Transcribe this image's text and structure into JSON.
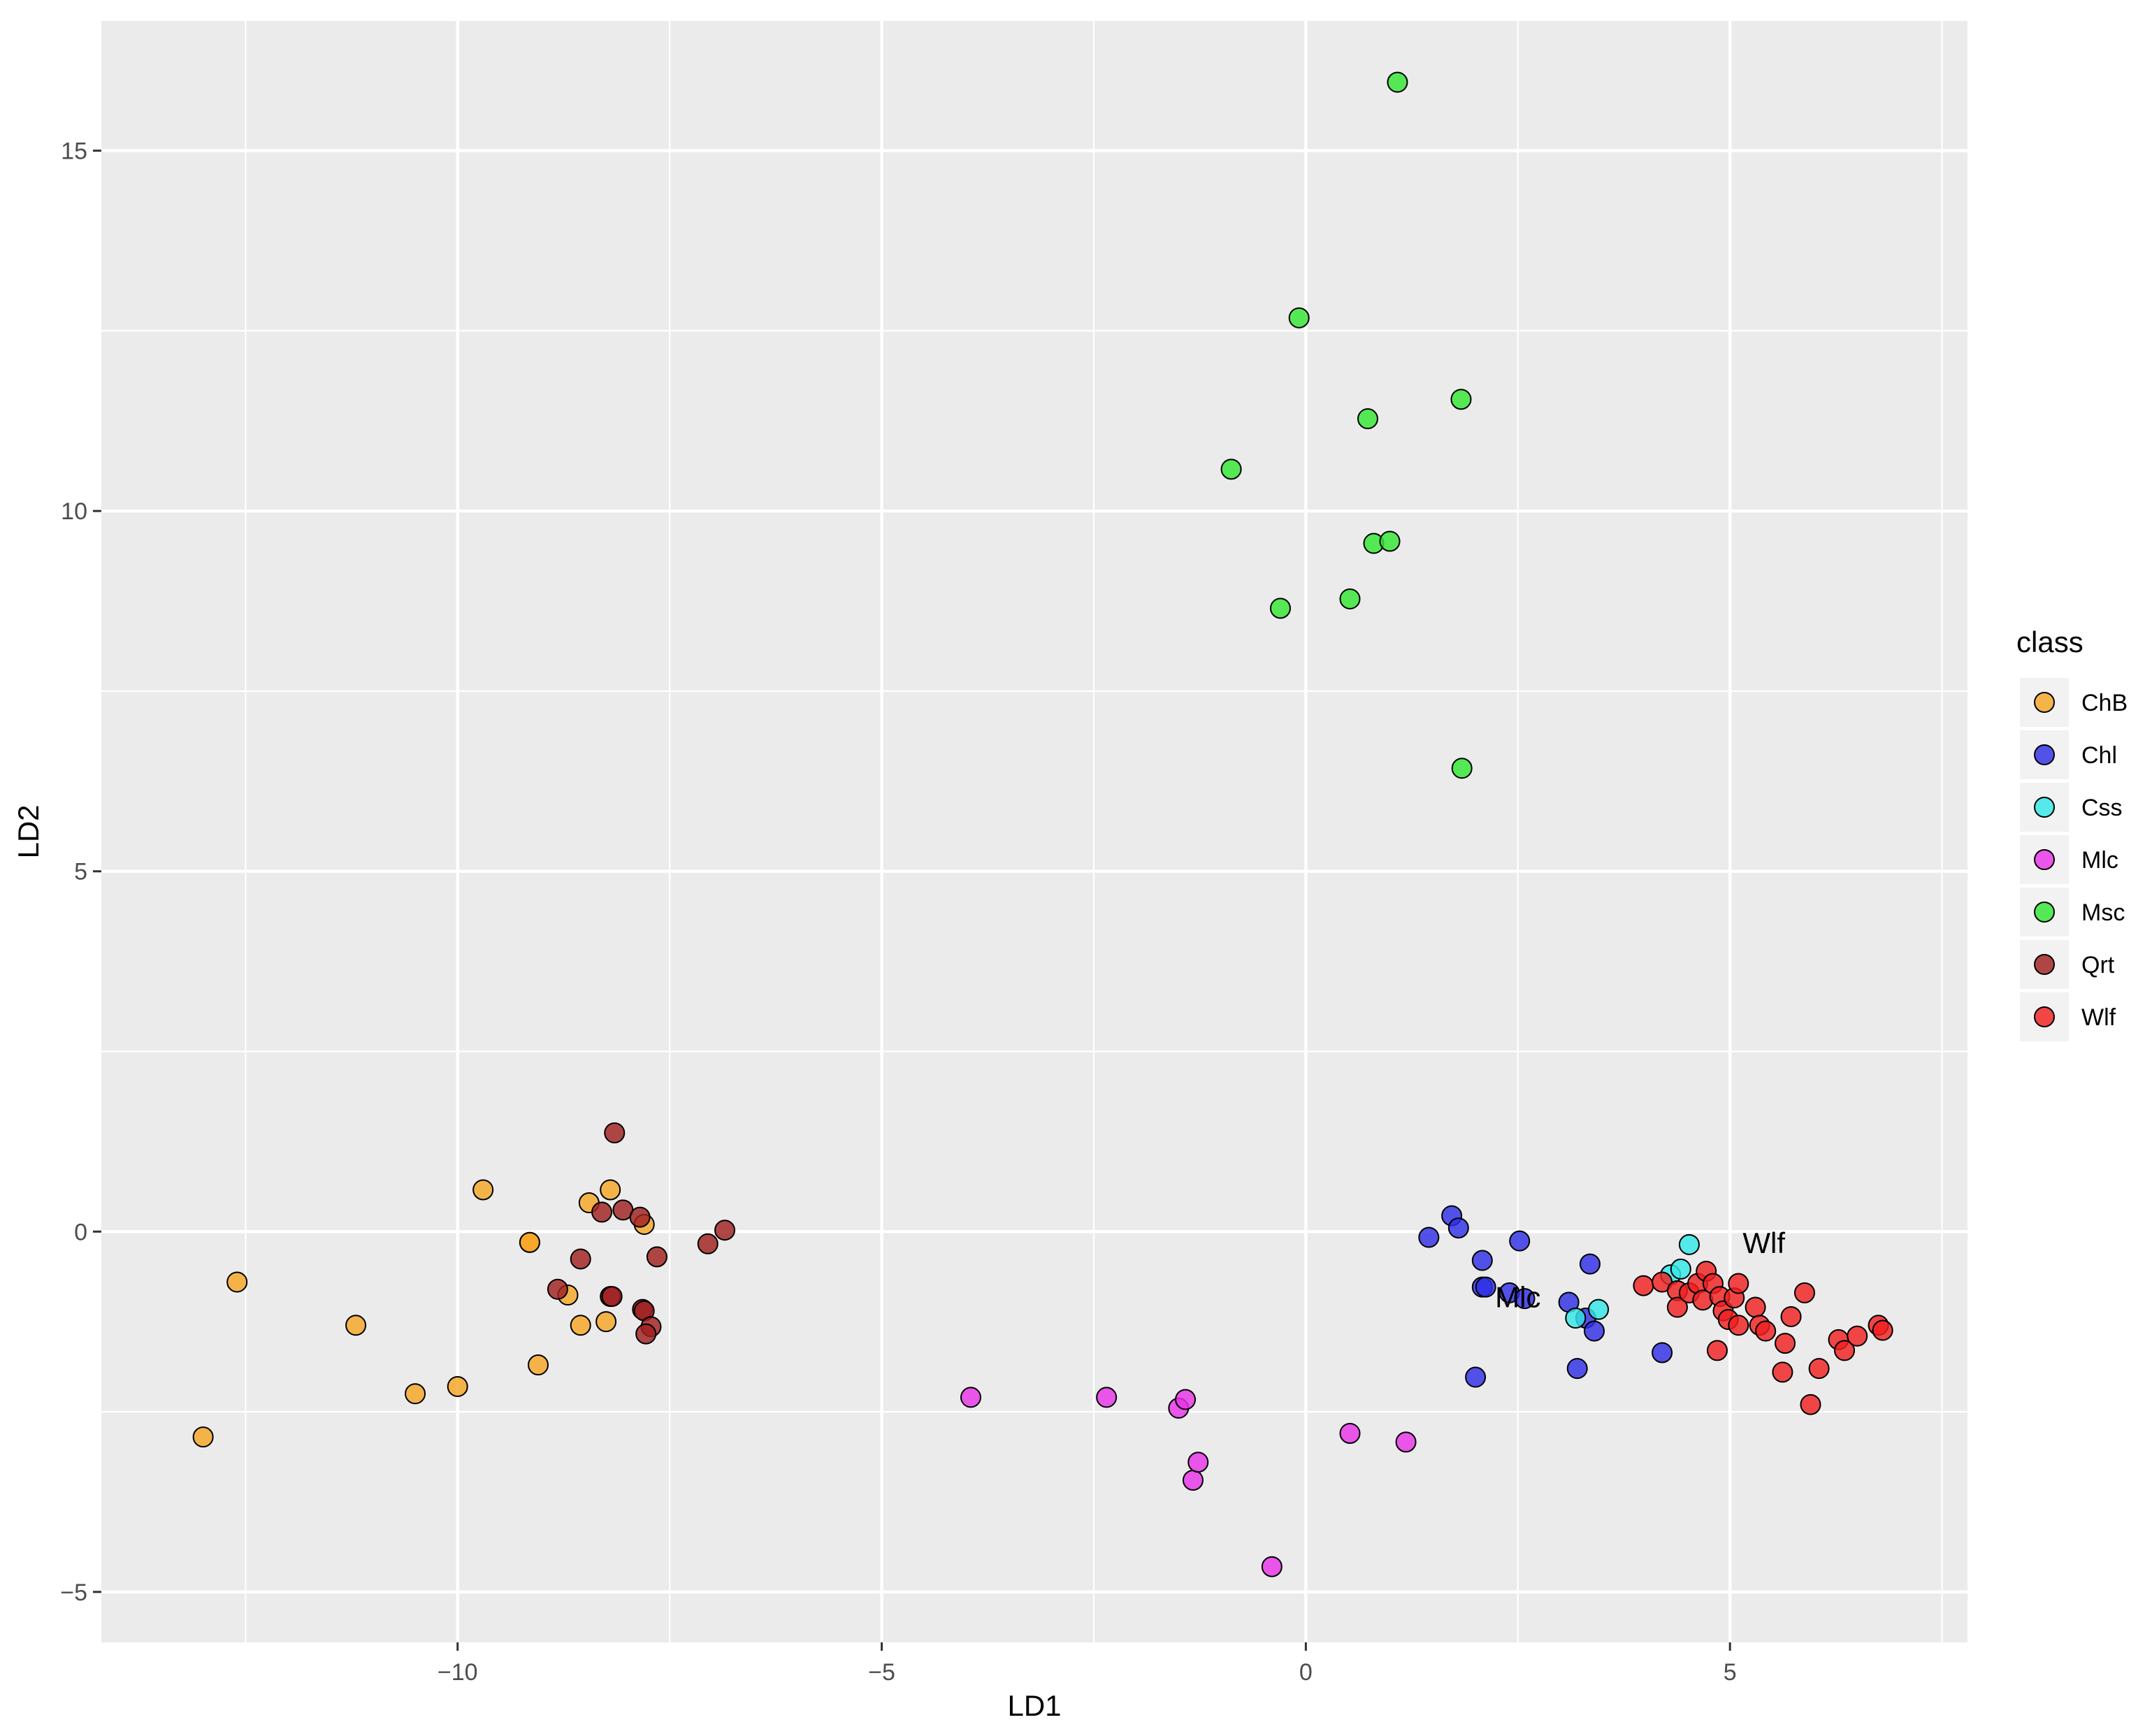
{
  "chart_data": {
    "type": "scatter",
    "xlabel": "LD1",
    "ylabel": "LD2",
    "xlim": [
      -14.2,
      7.8
    ],
    "ylim": [
      -5.7,
      16.8
    ],
    "xticks": [
      -10,
      -5,
      0,
      5
    ],
    "yticks": [
      -5,
      0,
      5,
      10,
      15
    ],
    "xtick_labels": [
      "−10",
      "−5",
      "0",
      "5"
    ],
    "ytick_labels": [
      "−5",
      "0",
      "5",
      "10",
      "15"
    ],
    "grid": true,
    "legend": {
      "title": "class",
      "placement": "right"
    },
    "annotations": [
      {
        "text": "Mlc",
        "x": 2.5,
        "y": -1.05
      },
      {
        "text": "Wlf",
        "x": 5.4,
        "y": -0.3
      }
    ],
    "series": [
      {
        "name": "ChB",
        "color": "#F5A623",
        "points": [
          [
            -13.0,
            -2.85
          ],
          [
            -12.6,
            -0.7
          ],
          [
            -11.2,
            -1.3
          ],
          [
            -10.5,
            -2.25
          ],
          [
            -10.0,
            -2.15
          ],
          [
            -9.7,
            0.58
          ],
          [
            -9.15,
            -0.15
          ],
          [
            -9.15,
            -0.15
          ],
          [
            -9.05,
            -1.85
          ],
          [
            -8.7,
            -0.88
          ],
          [
            -8.55,
            -1.3
          ],
          [
            -8.45,
            0.4
          ],
          [
            -8.25,
            -1.25
          ],
          [
            -8.2,
            0.58
          ],
          [
            -7.8,
            0.1
          ]
        ]
      },
      {
        "name": "Chl",
        "color": "#2E2EE6",
        "points": [
          [
            1.45,
            -0.08
          ],
          [
            1.72,
            0.22
          ],
          [
            1.8,
            0.05
          ],
          [
            2.0,
            -2.02
          ],
          [
            2.08,
            -0.4
          ],
          [
            2.08,
            -0.77
          ],
          [
            2.12,
            -0.77
          ],
          [
            2.4,
            -0.85
          ],
          [
            2.52,
            -0.13
          ],
          [
            2.58,
            -0.93
          ],
          [
            3.1,
            -0.98
          ],
          [
            3.2,
            -1.9
          ],
          [
            3.3,
            -1.2
          ],
          [
            3.35,
            -0.45
          ],
          [
            3.4,
            -1.38
          ],
          [
            4.2,
            -1.68
          ]
        ]
      },
      {
        "name": "Css",
        "color": "#33E6E6",
        "points": [
          [
            3.18,
            -1.2
          ],
          [
            3.45,
            -1.08
          ],
          [
            4.3,
            -0.6
          ],
          [
            4.42,
            -0.52
          ],
          [
            4.52,
            -0.18
          ]
        ]
      },
      {
        "name": "Mlc",
        "color": "#E633E6",
        "points": [
          [
            -3.95,
            -2.3
          ],
          [
            -2.35,
            -2.3
          ],
          [
            -1.5,
            -2.45
          ],
          [
            -1.42,
            -2.33
          ],
          [
            -1.33,
            -3.45
          ],
          [
            -1.27,
            -3.2
          ],
          [
            -0.4,
            -4.65
          ],
          [
            0.52,
            -2.8
          ],
          [
            1.18,
            -2.92
          ]
        ]
      },
      {
        "name": "Msc",
        "color": "#33E633",
        "points": [
          [
            1.08,
            15.95
          ],
          [
            -0.08,
            12.68
          ],
          [
            1.83,
            11.55
          ],
          [
            0.73,
            11.28
          ],
          [
            -0.88,
            10.58
          ],
          [
            0.8,
            9.55
          ],
          [
            0.99,
            9.58
          ],
          [
            0.52,
            8.78
          ],
          [
            -0.3,
            8.65
          ],
          [
            1.84,
            6.43
          ]
        ]
      },
      {
        "name": "Qrt",
        "color": "#A02020",
        "points": [
          [
            -8.15,
            1.37
          ],
          [
            -8.05,
            0.3
          ],
          [
            -7.85,
            0.2
          ],
          [
            -8.3,
            0.27
          ],
          [
            -6.85,
            0.02
          ],
          [
            -7.05,
            -0.17
          ],
          [
            -7.65,
            -0.35
          ],
          [
            -8.55,
            -0.38
          ],
          [
            -8.82,
            -0.8
          ],
          [
            -8.2,
            -0.9
          ],
          [
            -8.18,
            -0.9
          ],
          [
            -7.82,
            -1.08
          ],
          [
            -7.8,
            -1.1
          ],
          [
            -7.72,
            -1.32
          ],
          [
            -7.78,
            -1.42
          ]
        ]
      },
      {
        "name": "Wlf",
        "color": "#F02020",
        "points": [
          [
            3.98,
            -0.75
          ],
          [
            4.2,
            -0.7
          ],
          [
            4.38,
            -0.82
          ],
          [
            4.38,
            -1.05
          ],
          [
            4.52,
            -0.85
          ],
          [
            4.62,
            -0.72
          ],
          [
            4.68,
            -0.95
          ],
          [
            4.72,
            -0.55
          ],
          [
            4.8,
            -0.72
          ],
          [
            4.88,
            -0.9
          ],
          [
            4.92,
            -1.1
          ],
          [
            4.98,
            -1.22
          ],
          [
            5.05,
            -0.92
          ],
          [
            5.1,
            -0.72
          ],
          [
            5.1,
            -1.3
          ],
          [
            5.3,
            -1.05
          ],
          [
            5.35,
            -1.3
          ],
          [
            5.42,
            -1.38
          ],
          [
            5.62,
            -1.95
          ],
          [
            5.65,
            -1.55
          ],
          [
            5.72,
            -1.18
          ],
          [
            5.88,
            -0.85
          ],
          [
            5.95,
            -2.4
          ],
          [
            6.05,
            -1.9
          ],
          [
            6.28,
            -1.5
          ],
          [
            6.35,
            -1.65
          ],
          [
            6.5,
            -1.45
          ],
          [
            6.75,
            -1.3
          ],
          [
            6.8,
            -1.37
          ],
          [
            4.85,
            -1.65
          ]
        ]
      }
    ]
  }
}
